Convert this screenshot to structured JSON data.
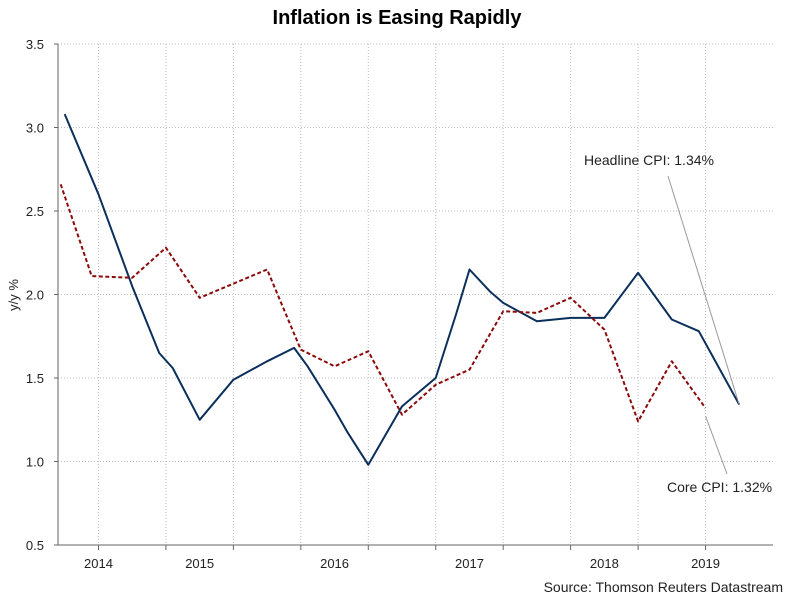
{
  "chart_data": {
    "type": "line",
    "title": "Inflation is Easing Rapidly",
    "xlabel": "",
    "ylabel": "y/y %",
    "ylim": [
      0.5,
      3.5
    ],
    "yticks": [
      "0.5",
      "1.0",
      "1.5",
      "2.0",
      "2.5",
      "3.0",
      "3.5"
    ],
    "year_labels": [
      "2014",
      "2015",
      "2016",
      "2017",
      "2018",
      "2019"
    ],
    "grid": true,
    "source": "Source: Thomson Reuters Datastream",
    "series": [
      {
        "name": "Headline CPI",
        "color": "#0b2f5b",
        "style": "solid",
        "points": [
          [
            2013.75,
            3.08
          ],
          [
            2014.0,
            2.6
          ],
          [
            2014.25,
            2.05
          ],
          [
            2014.45,
            1.65
          ],
          [
            2014.55,
            1.56
          ],
          [
            2014.75,
            1.25
          ],
          [
            2015.0,
            1.49
          ],
          [
            2015.25,
            1.6
          ],
          [
            2015.45,
            1.68
          ],
          [
            2015.55,
            1.57
          ],
          [
            2015.75,
            1.31
          ],
          [
            2015.85,
            1.17
          ],
          [
            2016.0,
            0.98
          ],
          [
            2016.25,
            1.33
          ],
          [
            2016.5,
            1.5
          ],
          [
            2016.65,
            1.88
          ],
          [
            2016.75,
            2.15
          ],
          [
            2016.9,
            2.02
          ],
          [
            2017.0,
            1.95
          ],
          [
            2017.25,
            1.84
          ],
          [
            2017.5,
            1.86
          ],
          [
            2017.75,
            1.86
          ],
          [
            2018.0,
            2.13
          ],
          [
            2018.25,
            1.85
          ],
          [
            2018.45,
            1.78
          ],
          [
            2018.75,
            1.34
          ]
        ]
      },
      {
        "name": "Core CPI",
        "color": "#8b0a0a",
        "style": "dashed",
        "points": [
          [
            2013.72,
            2.66
          ],
          [
            2013.95,
            2.11
          ],
          [
            2014.25,
            2.1
          ],
          [
            2014.5,
            2.28
          ],
          [
            2014.75,
            1.98
          ],
          [
            2015.25,
            2.15
          ],
          [
            2015.5,
            1.67
          ],
          [
            2015.75,
            1.57
          ],
          [
            2016.0,
            1.66
          ],
          [
            2016.25,
            1.28
          ],
          [
            2016.5,
            1.46
          ],
          [
            2016.75,
            1.55
          ],
          [
            2017.0,
            1.9
          ],
          [
            2017.25,
            1.89
          ],
          [
            2017.5,
            1.98
          ],
          [
            2017.75,
            1.79
          ],
          [
            2018.0,
            1.24
          ],
          [
            2018.25,
            1.6
          ],
          [
            2018.5,
            1.32
          ]
        ]
      }
    ],
    "annotations": [
      {
        "text": "Headline CPI: 1.34%",
        "series": "Headline CPI"
      },
      {
        "text": "Core CPI: 1.32%",
        "series": "Core CPI"
      }
    ]
  }
}
